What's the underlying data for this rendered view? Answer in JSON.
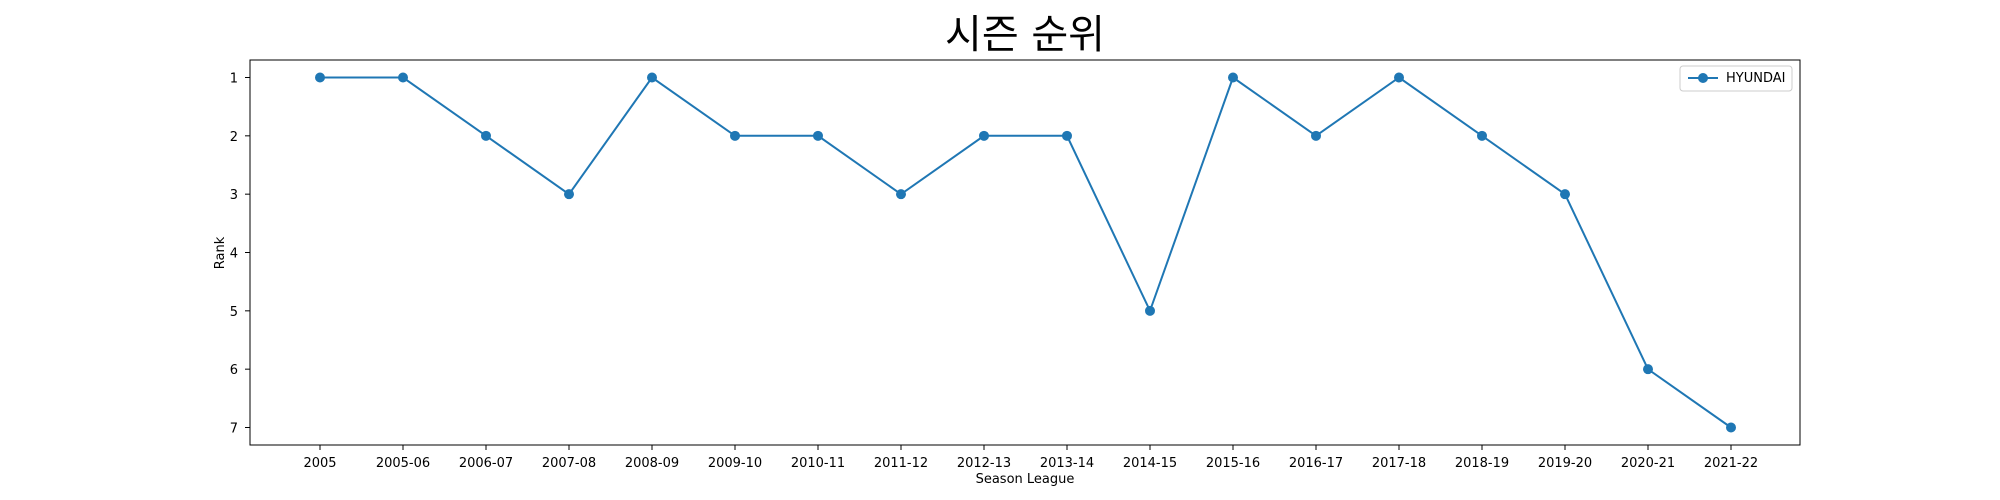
{
  "chart_data": {
    "type": "line",
    "title": "시즌 순위",
    "xlabel": "Season League",
    "ylabel": "Rank",
    "categories": [
      "2005",
      "2005-06",
      "2006-07",
      "2007-08",
      "2008-09",
      "2009-10",
      "2010-11",
      "2011-12",
      "2012-13",
      "2013-14",
      "2014-15",
      "2015-16",
      "2016-17",
      "2017-18",
      "2018-19",
      "2019-20",
      "2020-21",
      "2021-22"
    ],
    "series": [
      {
        "name": "HYUNDAI",
        "values": [
          1,
          1,
          2,
          3,
          1,
          2,
          2,
          3,
          2,
          2,
          5,
          1,
          2,
          1,
          2,
          3,
          6,
          7
        ]
      }
    ],
    "y_ticks": [
      1,
      2,
      3,
      4,
      5,
      6,
      7
    ],
    "ylim": [
      0.7,
      7.3
    ],
    "y_inverted": true,
    "grid": false,
    "legend_position": "top-right",
    "colors": {
      "series": "#1f77b4"
    }
  }
}
